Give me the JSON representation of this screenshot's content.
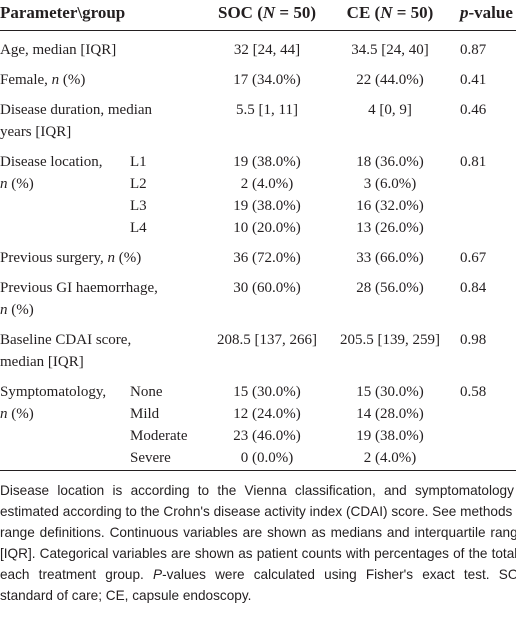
{
  "header": {
    "parameter": [
      "Parameter\\group"
    ],
    "soc": [
      "SOC (",
      {
        "text": "N",
        "italic": true
      },
      " = 50)"
    ],
    "ce": [
      "CE (",
      {
        "text": "N",
        "italic": true
      },
      " = 50)"
    ],
    "p": [
      {
        "text": "p",
        "italic": true
      },
      "-value"
    ]
  },
  "rows": [
    {
      "label": [
        [
          "Age, median [IQR]"
        ]
      ],
      "values": [
        {
          "soc": "32 [24, 44]",
          "ce": "34.5 [24, 40]"
        }
      ],
      "p": "0.87"
    },
    {
      "label": [
        [
          "Female, ",
          {
            "text": "n",
            "italic": true
          },
          " (%)"
        ]
      ],
      "values": [
        {
          "soc": "17 (34.0%)",
          "ce": "22 (44.0%)"
        }
      ],
      "p": "0.41"
    },
    {
      "label": [
        [
          "Disease duration, median"
        ],
        [
          "years [IQR]"
        ]
      ],
      "values": [
        {
          "soc": "5.5 [1, 11]",
          "ce": "4 [0, 9]"
        }
      ],
      "p": "0.46"
    },
    {
      "label": [
        [
          "Disease location,"
        ],
        [
          {
            "text": "n",
            "italic": true
          },
          " (%)"
        ]
      ],
      "values": [
        {
          "sub": "L1",
          "soc": "19 (38.0%)",
          "ce": "18 (36.0%)"
        },
        {
          "sub": "L2",
          "soc": "2 (4.0%)",
          "ce": "3 (6.0%)"
        },
        {
          "sub": "L3",
          "soc": "19 (38.0%)",
          "ce": "16 (32.0%)"
        },
        {
          "sub": "L4",
          "soc": "10 (20.0%)",
          "ce": "13 (26.0%)"
        }
      ],
      "p": "0.81"
    },
    {
      "label": [
        [
          "Previous surgery, ",
          {
            "text": "n",
            "italic": true
          },
          " (%)"
        ]
      ],
      "values": [
        {
          "soc": "36 (72.0%)",
          "ce": "33 (66.0%)"
        }
      ],
      "p": "0.67"
    },
    {
      "label": [
        [
          "Previous GI haemorrhage,"
        ],
        [
          {
            "text": "n",
            "italic": true
          },
          " (%)"
        ]
      ],
      "values": [
        {
          "soc": "30 (60.0%)",
          "ce": "28 (56.0%)"
        }
      ],
      "p": "0.84"
    },
    {
      "label": [
        [
          "Baseline CDAI score,"
        ],
        [
          "median [IQR]"
        ]
      ],
      "values": [
        {
          "soc": "208.5 [137, 266]",
          "ce": "205.5 [139, 259]"
        }
      ],
      "p": "0.98"
    },
    {
      "label": [
        [
          "Symptomatology,"
        ],
        [
          {
            "text": "n",
            "italic": true
          },
          " (%)"
        ]
      ],
      "values": [
        {
          "sub": "None",
          "soc": "15 (30.0%)",
          "ce": "15 (30.0%)"
        },
        {
          "sub": "Mild",
          "soc": "12 (24.0%)",
          "ce": "14 (28.0%)"
        },
        {
          "sub": "Moderate",
          "soc": "23 (46.0%)",
          "ce": "19 (38.0%)"
        },
        {
          "sub": "Severe",
          "soc": "0 (0.0%)",
          "ce": "2 (4.0%)"
        }
      ],
      "p": "0.58"
    }
  ],
  "footnote": [
    "Disease location is according to the Vienna classification, and symptomatology is estimated according to the Crohn's disease activity index (CDAI) score. See methods for range definitions. Continuous variables are shown as medians and interquartile ranges [IQR]. Categorical variables are shown as patient counts with percentages of the total in each treatment group. ",
    {
      "text": "P",
      "italic": true
    },
    "-values were calculated using Fisher's exact test. SOC, standard of care; CE, capsule endoscopy."
  ]
}
